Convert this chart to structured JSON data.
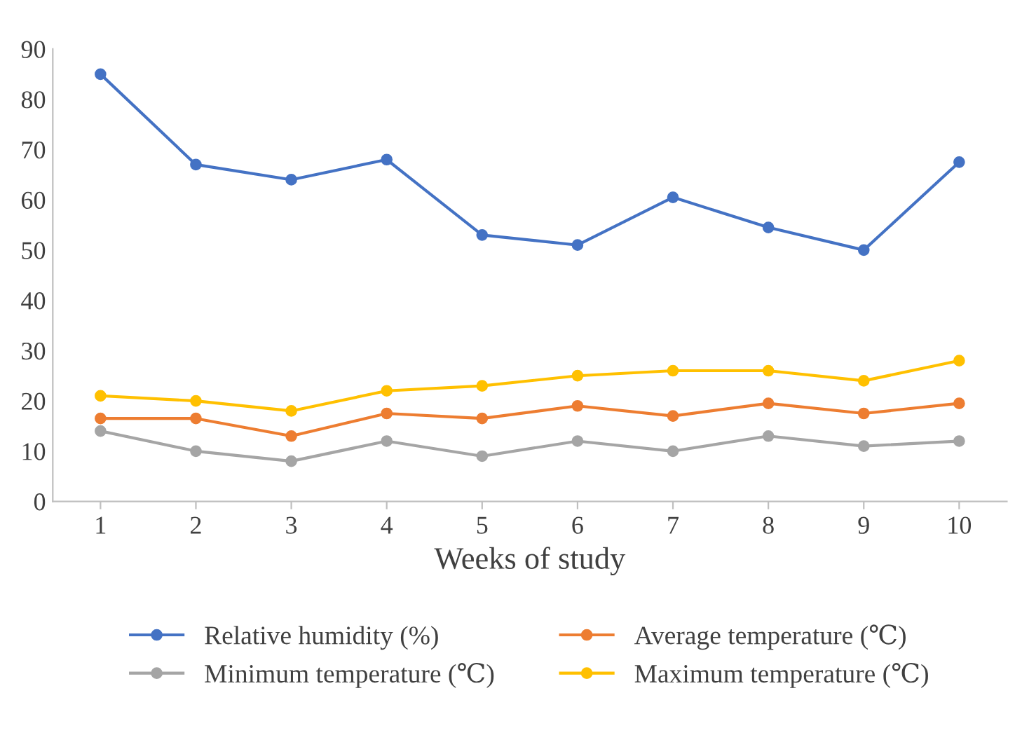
{
  "chart_data": {
    "type": "line",
    "xlabel": "Weeks of study",
    "categories": [
      "1",
      "2",
      "3",
      "4",
      "5",
      "6",
      "7",
      "8",
      "9",
      "10"
    ],
    "series": [
      {
        "name": "Relative humidity (%)",
        "color": "#4472c4",
        "values": [
          85,
          67,
          64,
          68,
          53,
          51,
          60.5,
          54.5,
          50,
          67.5
        ]
      },
      {
        "name": "Average temperature (℃)",
        "color": "#ed7d31",
        "values": [
          16.5,
          16.5,
          13,
          17.5,
          16.5,
          19,
          17,
          19.5,
          17.5,
          19.5
        ]
      },
      {
        "name": "Minimum temperature (℃)",
        "color": "#a5a5a5",
        "values": [
          14,
          10,
          8,
          12,
          9,
          12,
          10,
          13,
          11,
          12
        ]
      },
      {
        "name": "Maximum temperature (℃)",
        "color": "#ffc000",
        "values": [
          21,
          20,
          18,
          22,
          23,
          25,
          26,
          26,
          24,
          28
        ]
      }
    ],
    "ylim": [
      0,
      90
    ],
    "yticks": [
      0,
      10,
      20,
      30,
      40,
      50,
      60,
      70,
      80,
      90
    ],
    "grid": false,
    "legend": "bottom",
    "marker": "circle",
    "line_style": "solid"
  }
}
